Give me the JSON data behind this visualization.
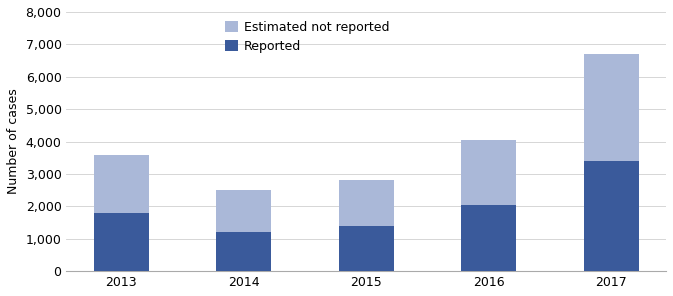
{
  "categories": [
    "2013",
    "2014",
    "2015",
    "2016",
    "2017"
  ],
  "reported": [
    1800,
    1200,
    1400,
    2050,
    3400
  ],
  "estimated_not_reported": [
    1800,
    1300,
    1400,
    2000,
    3300
  ],
  "color_reported": "#3a5a9b",
  "color_estimated": "#aab8d8",
  "ylabel": "Number of cases",
  "ylim": [
    0,
    8000
  ],
  "yticks": [
    0,
    1000,
    2000,
    3000,
    4000,
    5000,
    6000,
    7000,
    8000
  ],
  "legend_labels": [
    "Estimated not reported",
    "Reported"
  ],
  "bar_width": 0.45,
  "figsize": [
    6.73,
    2.96
  ],
  "dpi": 100
}
